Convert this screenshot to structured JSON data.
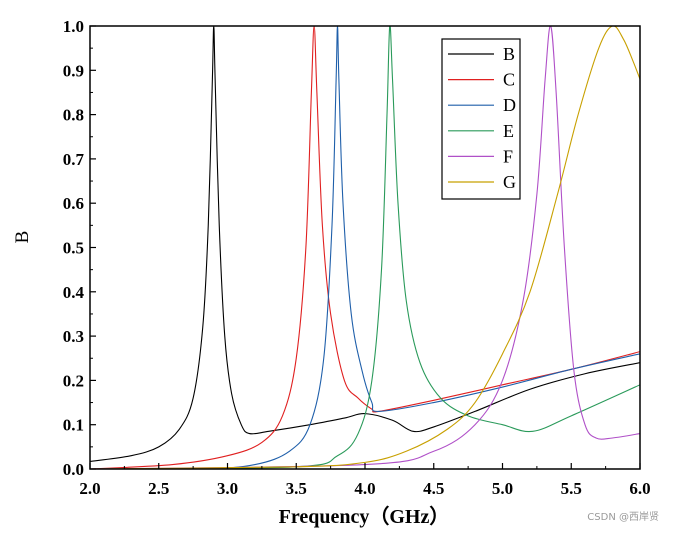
{
  "chart_data": {
    "type": "line",
    "title": "",
    "xlabel": "Frequency（GHz）",
    "ylabel": "B",
    "xlim": [
      2.0,
      6.0
    ],
    "ylim": [
      0.0,
      1.0
    ],
    "xticks": [
      "2.0",
      "2.5",
      "3.0",
      "3.5",
      "4.0",
      "4.5",
      "5.0",
      "5.5",
      "6.0"
    ],
    "yticks": [
      "0.0",
      "0.1",
      "0.2",
      "0.3",
      "0.4",
      "0.5",
      "0.6",
      "0.7",
      "0.8",
      "0.9",
      "1.0"
    ],
    "legend_position": "top-right",
    "series": [
      {
        "name": "B",
        "color": "#000000",
        "x": [
          2.0,
          2.3,
          2.5,
          2.65,
          2.75,
          2.82,
          2.86,
          2.89,
          2.9,
          2.91,
          2.94,
          2.98,
          3.03,
          3.1,
          3.16,
          3.3,
          3.6,
          3.85,
          4.0,
          4.2,
          4.35,
          4.5,
          4.8,
          5.2,
          5.6,
          6.0
        ],
        "y": [
          0.017,
          0.03,
          0.05,
          0.09,
          0.16,
          0.32,
          0.55,
          0.88,
          1.0,
          0.88,
          0.55,
          0.3,
          0.17,
          0.1,
          0.08,
          0.085,
          0.1,
          0.115,
          0.125,
          0.11,
          0.085,
          0.095,
          0.13,
          0.18,
          0.215,
          0.24
        ]
      },
      {
        "name": "C",
        "color": "#e02020",
        "x": [
          2.0,
          2.6,
          3.0,
          3.25,
          3.4,
          3.5,
          3.57,
          3.61,
          3.63,
          3.65,
          3.69,
          3.75,
          3.85,
          3.95,
          4.05,
          4.1,
          4.5,
          5.0,
          5.5,
          6.0
        ],
        "y": [
          0.0,
          0.01,
          0.03,
          0.06,
          0.12,
          0.25,
          0.5,
          0.85,
          1.0,
          0.85,
          0.55,
          0.35,
          0.2,
          0.16,
          0.135,
          0.13,
          0.155,
          0.19,
          0.225,
          0.265
        ]
      },
      {
        "name": "D",
        "color": "#1f5faa",
        "x": [
          2.0,
          2.8,
          3.2,
          3.45,
          3.6,
          3.7,
          3.76,
          3.79,
          3.8,
          3.81,
          3.84,
          3.9,
          3.98,
          4.05,
          4.1,
          4.5,
          5.0,
          5.5,
          6.0
        ],
        "y": [
          0.0,
          0.0,
          0.01,
          0.04,
          0.1,
          0.25,
          0.55,
          0.88,
          1.0,
          0.88,
          0.6,
          0.35,
          0.22,
          0.15,
          0.13,
          0.15,
          0.185,
          0.225,
          0.26
        ]
      },
      {
        "name": "E",
        "color": "#2a9a5a",
        "x": [
          2.0,
          3.5,
          3.8,
          3.95,
          4.05,
          4.12,
          4.16,
          4.18,
          4.2,
          4.24,
          4.3,
          4.4,
          4.55,
          4.75,
          5.0,
          5.22,
          5.5,
          6.0
        ],
        "y": [
          0.0,
          0.005,
          0.03,
          0.08,
          0.2,
          0.45,
          0.8,
          1.0,
          0.88,
          0.6,
          0.38,
          0.24,
          0.16,
          0.12,
          0.1,
          0.085,
          0.12,
          0.19
        ]
      },
      {
        "name": "F",
        "color": "#b050c8",
        "x": [
          2.0,
          4.0,
          4.5,
          4.8,
          5.0,
          5.15,
          5.25,
          5.31,
          5.35,
          5.39,
          5.45,
          5.52,
          5.6,
          5.68,
          5.8,
          6.0
        ],
        "y": [
          0.0,
          0.01,
          0.04,
          0.1,
          0.2,
          0.38,
          0.62,
          0.88,
          1.0,
          0.85,
          0.5,
          0.22,
          0.1,
          0.07,
          0.07,
          0.08
        ]
      },
      {
        "name": "G",
        "color": "#c8a000",
        "x": [
          2.0,
          3.5,
          4.0,
          4.3,
          4.6,
          4.8,
          5.0,
          5.2,
          5.4,
          5.55,
          5.7,
          5.8,
          5.88,
          5.95,
          6.0
        ],
        "y": [
          0.0,
          0.005,
          0.015,
          0.04,
          0.09,
          0.15,
          0.26,
          0.4,
          0.62,
          0.8,
          0.95,
          1.0,
          0.97,
          0.92,
          0.88
        ]
      }
    ]
  },
  "watermark": "CSDN @西岸贤"
}
